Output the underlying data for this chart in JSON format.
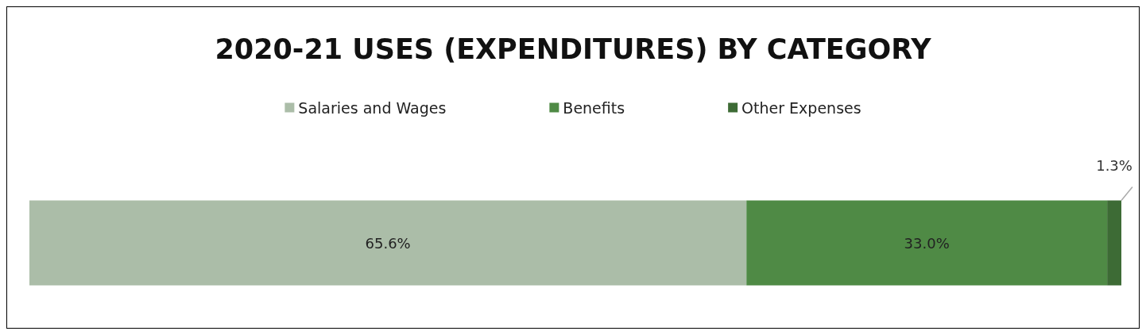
{
  "chart_data": {
    "type": "bar",
    "title": "2020-21 USES (EXPENDITURES) BY CATEGORY",
    "orientation": "horizontal",
    "stacked": true,
    "categories": [
      null
    ],
    "legend": "top",
    "series": [
      {
        "name": "Salaries and Wages",
        "color": "#abbda8",
        "values": [
          65.6
        ],
        "value_labels": [
          "65.6%"
        ]
      },
      {
        "name": "Benefits",
        "color": "#4f8a45",
        "values": [
          33.0
        ],
        "value_labels": [
          "33.0%"
        ]
      },
      {
        "name": "Other Expenses",
        "color": "#3d6b35",
        "values": [
          1.3
        ],
        "value_labels": [
          "1.3%"
        ]
      }
    ]
  }
}
